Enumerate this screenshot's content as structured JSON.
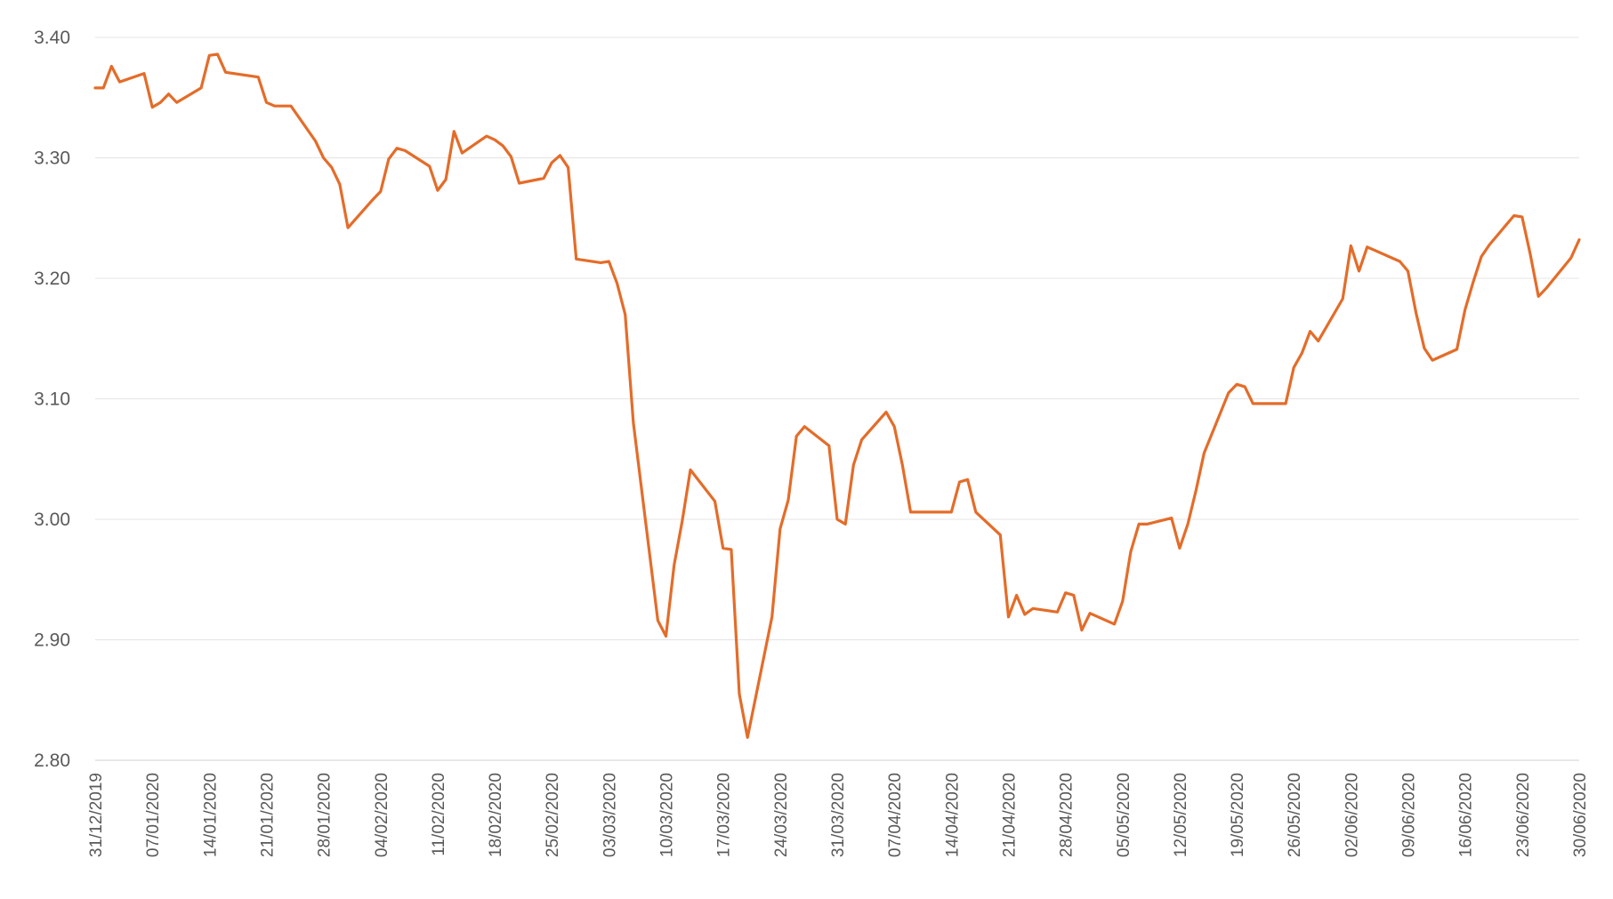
{
  "chart_data": {
    "type": "line",
    "title": "",
    "xlabel": "",
    "ylabel": "",
    "ylim": [
      2.8,
      3.4
    ],
    "yticks": [
      "2.80",
      "2.90",
      "3.00",
      "3.10",
      "3.20",
      "3.30",
      "3.40"
    ],
    "ytick_values": [
      2.8,
      2.9,
      3.0,
      3.1,
      3.2,
      3.3,
      3.4
    ],
    "xlim": [
      "2019-12-31",
      "2020-06-30"
    ],
    "xtick_labels": [
      "31/12/2019",
      "07/01/2020",
      "14/01/2020",
      "21/01/2020",
      "28/01/2020",
      "04/02/2020",
      "11/02/2020",
      "18/02/2020",
      "25/02/2020",
      "03/03/2020",
      "10/03/2020",
      "17/03/2020",
      "24/03/2020",
      "31/03/2020",
      "07/04/2020",
      "14/04/2020",
      "21/04/2020",
      "28/04/2020",
      "05/05/2020",
      "12/05/2020",
      "19/05/2020",
      "26/05/2020",
      "02/06/2020",
      "09/06/2020",
      "16/06/2020",
      "23/06/2020",
      "30/06/2020"
    ],
    "xtick_dates": [
      "2019-12-31",
      "2020-01-07",
      "2020-01-14",
      "2020-01-21",
      "2020-01-28",
      "2020-02-04",
      "2020-02-11",
      "2020-02-18",
      "2020-02-25",
      "2020-03-03",
      "2020-03-10",
      "2020-03-17",
      "2020-03-24",
      "2020-03-31",
      "2020-04-07",
      "2020-04-14",
      "2020-04-21",
      "2020-04-28",
      "2020-05-05",
      "2020-05-12",
      "2020-05-19",
      "2020-05-26",
      "2020-06-02",
      "2020-06-09",
      "2020-06-16",
      "2020-06-23",
      "2020-06-30"
    ],
    "grid": true,
    "legend": "none",
    "series": [
      {
        "color": "#E46C29",
        "x": [
          "2019-12-31",
          "2020-01-01",
          "2020-01-02",
          "2020-01-03",
          "2020-01-06",
          "2020-01-07",
          "2020-01-08",
          "2020-01-09",
          "2020-01-10",
          "2020-01-13",
          "2020-01-14",
          "2020-01-15",
          "2020-01-16",
          "2020-01-20",
          "2020-01-21",
          "2020-01-22",
          "2020-01-23",
          "2020-01-24",
          "2020-01-27",
          "2020-01-28",
          "2020-01-29",
          "2020-01-30",
          "2020-01-31",
          "2020-02-03",
          "2020-02-04",
          "2020-02-05",
          "2020-02-06",
          "2020-02-07",
          "2020-02-10",
          "2020-02-11",
          "2020-02-12",
          "2020-02-13",
          "2020-02-14",
          "2020-02-17",
          "2020-02-18",
          "2020-02-19",
          "2020-02-20",
          "2020-02-21",
          "2020-02-24",
          "2020-02-25",
          "2020-02-26",
          "2020-02-27",
          "2020-02-28",
          "2020-03-02",
          "2020-03-03",
          "2020-03-04",
          "2020-03-05",
          "2020-03-06",
          "2020-03-09",
          "2020-03-10",
          "2020-03-11",
          "2020-03-12",
          "2020-03-13",
          "2020-03-16",
          "2020-03-17",
          "2020-03-18",
          "2020-03-19",
          "2020-03-20",
          "2020-03-23",
          "2020-03-24",
          "2020-03-25",
          "2020-03-26",
          "2020-03-27",
          "2020-03-30",
          "2020-03-31",
          "2020-04-01",
          "2020-04-02",
          "2020-04-03",
          "2020-04-06",
          "2020-04-07",
          "2020-04-08",
          "2020-04-09",
          "2020-04-13",
          "2020-04-14",
          "2020-04-15",
          "2020-04-16",
          "2020-04-17",
          "2020-04-20",
          "2020-04-21",
          "2020-04-22",
          "2020-04-23",
          "2020-04-24",
          "2020-04-27",
          "2020-04-28",
          "2020-04-29",
          "2020-04-30",
          "2020-05-01",
          "2020-05-04",
          "2020-05-05",
          "2020-05-06",
          "2020-05-07",
          "2020-05-08",
          "2020-05-11",
          "2020-05-12",
          "2020-05-13",
          "2020-05-14",
          "2020-05-15",
          "2020-05-18",
          "2020-05-19",
          "2020-05-20",
          "2020-05-21",
          "2020-05-22",
          "2020-05-25",
          "2020-05-26",
          "2020-05-27",
          "2020-05-28",
          "2020-05-29",
          "2020-06-01",
          "2020-06-02",
          "2020-06-03",
          "2020-06-04",
          "2020-06-05",
          "2020-06-08",
          "2020-06-09",
          "2020-06-10",
          "2020-06-11",
          "2020-06-12",
          "2020-06-15",
          "2020-06-16",
          "2020-06-17",
          "2020-06-18",
          "2020-06-19",
          "2020-06-22",
          "2020-06-23",
          "2020-06-24",
          "2020-06-25",
          "2020-06-26",
          "2020-06-29",
          "2020-06-30"
        ],
        "values": [
          3.358,
          3.358,
          3.376,
          3.363,
          3.37,
          3.342,
          3.346,
          3.353,
          3.346,
          3.358,
          3.385,
          3.386,
          3.371,
          3.367,
          3.346,
          3.343,
          3.343,
          3.343,
          3.314,
          3.3,
          3.292,
          3.278,
          3.242,
          3.265,
          3.272,
          3.299,
          3.308,
          3.306,
          3.293,
          3.273,
          3.282,
          3.322,
          3.304,
          3.318,
          3.315,
          3.31,
          3.301,
          3.279,
          3.283,
          3.296,
          3.302,
          3.292,
          3.216,
          3.213,
          3.214,
          3.196,
          3.17,
          3.08,
          2.916,
          2.903,
          2.962,
          2.999,
          3.041,
          3.015,
          2.976,
          2.975,
          2.855,
          2.819,
          2.919,
          2.992,
          3.016,
          3.069,
          3.077,
          3.061,
          3.0,
          2.996,
          3.045,
          3.066,
          3.089,
          3.077,
          3.045,
          3.006,
          3.006,
          3.006,
          3.031,
          3.033,
          3.006,
          2.987,
          2.919,
          2.937,
          2.921,
          2.926,
          2.923,
          2.939,
          2.937,
          2.908,
          2.922,
          2.913,
          2.932,
          2.973,
          2.996,
          2.996,
          3.001,
          2.976,
          2.996,
          3.024,
          3.055,
          3.105,
          3.112,
          3.11,
          3.096,
          3.096,
          3.096,
          3.126,
          3.138,
          3.156,
          3.148,
          3.183,
          3.227,
          3.206,
          3.226,
          3.223,
          3.214,
          3.206,
          3.171,
          3.142,
          3.132,
          3.141,
          3.174,
          3.197,
          3.218,
          3.228,
          3.252,
          3.251,
          3.22,
          3.185,
          3.192,
          3.217,
          3.232
        ]
      }
    ]
  }
}
